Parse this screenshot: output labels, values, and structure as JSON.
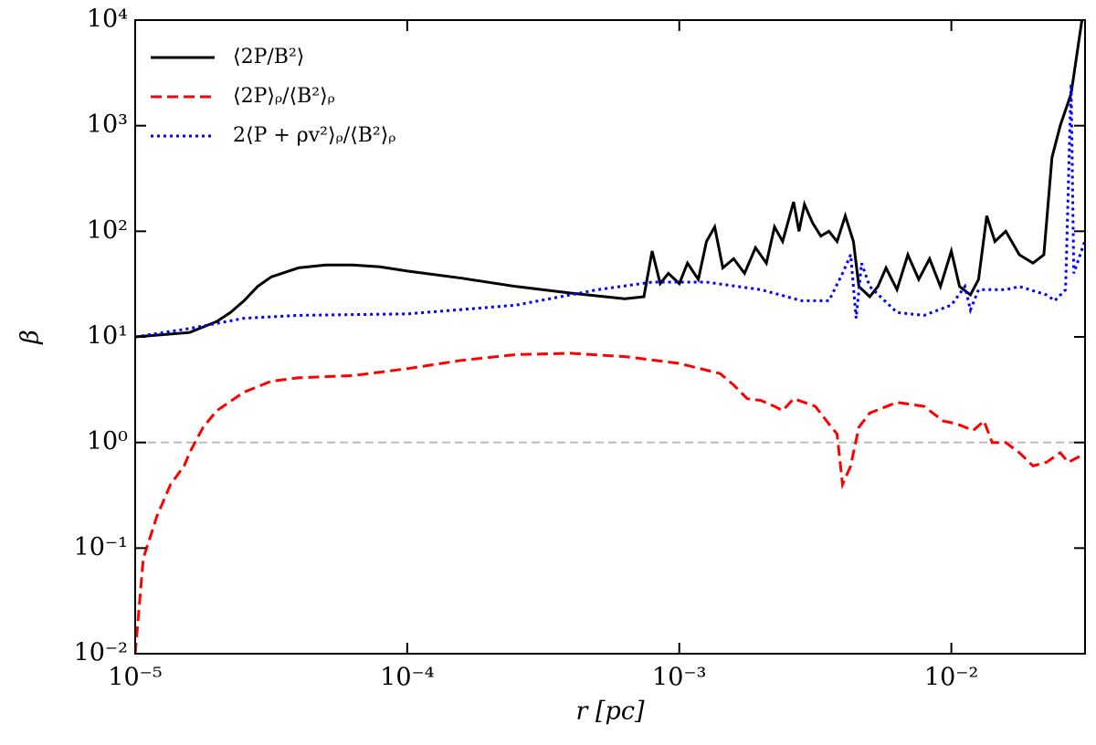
{
  "chart_data": {
    "type": "line",
    "xlabel": "r [pc]",
    "ylabel": "β",
    "xscale": "log",
    "yscale": "log",
    "xlim": [
      1e-05,
      0.031
    ],
    "ylim": [
      0.01,
      10000
    ],
    "xticks": [
      {
        "value": 1e-05,
        "label": "10⁻⁵"
      },
      {
        "value": 0.0001,
        "label": "10⁻⁴"
      },
      {
        "value": 0.001,
        "label": "10⁻³"
      },
      {
        "value": 0.01,
        "label": "10⁻²"
      }
    ],
    "yticks": [
      {
        "value": 0.01,
        "label": "10⁻²"
      },
      {
        "value": 0.1,
        "label": "10⁻¹"
      },
      {
        "value": 1,
        "label": "10⁰"
      },
      {
        "value": 10,
        "label": "10¹"
      },
      {
        "value": 100,
        "label": "10²"
      },
      {
        "value": 1000,
        "label": "10³"
      },
      {
        "value": 10000,
        "label": "10⁴"
      }
    ],
    "reference_line": {
      "value": 1,
      "color": "#bbbbbb"
    },
    "legend": "upper left",
    "series": [
      {
        "name": "⟨2P/B²⟩",
        "color": "#000000",
        "style": "solid",
        "logx": [
          -5.0,
          -4.8,
          -4.7,
          -4.65,
          -4.6,
          -4.55,
          -4.5,
          -4.4,
          -4.3,
          -4.2,
          -4.1,
          -4.0,
          -3.8,
          -3.6,
          -3.4,
          -3.2,
          -3.13,
          -3.1,
          -3.07,
          -3.04,
          -3.0,
          -2.97,
          -2.93,
          -2.9,
          -2.87,
          -2.84,
          -2.8,
          -2.76,
          -2.72,
          -2.68,
          -2.65,
          -2.62,
          -2.58,
          -2.56,
          -2.54,
          -2.51,
          -2.48,
          -2.45,
          -2.42,
          -2.39,
          -2.36,
          -2.34,
          -2.3,
          -2.27,
          -2.24,
          -2.2,
          -2.16,
          -2.12,
          -2.08,
          -2.04,
          -2.0,
          -1.97,
          -1.93,
          -1.9,
          -1.87,
          -1.84,
          -1.8,
          -1.75,
          -1.7,
          -1.66,
          -1.63,
          -1.6,
          -1.56,
          -1.52
        ],
        "values": [
          10,
          11,
          14,
          17,
          22,
          30,
          37,
          45,
          48,
          48,
          46,
          42,
          36,
          30,
          26,
          23,
          24,
          65,
          32,
          40,
          32,
          50,
          35,
          80,
          110,
          45,
          55,
          40,
          70,
          50,
          110,
          80,
          190,
          100,
          180,
          120,
          90,
          100,
          80,
          140,
          80,
          30,
          24,
          30,
          45,
          28,
          60,
          35,
          55,
          30,
          65,
          30,
          25,
          35,
          140,
          80,
          100,
          60,
          50,
          60,
          500,
          1000,
          2000,
          10000
        ]
      },
      {
        "name": "⟨2P⟩ᵨ/⟨B²⟩ᵨ",
        "color": "#ff0000",
        "style": "dashed",
        "logx": [
          -5.0,
          -4.97,
          -4.92,
          -4.87,
          -4.82,
          -4.8,
          -4.75,
          -4.7,
          -4.6,
          -4.5,
          -4.4,
          -4.2,
          -4.0,
          -3.8,
          -3.6,
          -3.4,
          -3.2,
          -3.0,
          -2.85,
          -2.8,
          -2.75,
          -2.7,
          -2.65,
          -2.62,
          -2.58,
          -2.5,
          -2.45,
          -2.42,
          -2.4,
          -2.37,
          -2.34,
          -2.3,
          -2.2,
          -2.1,
          -2.03,
          -1.98,
          -1.92,
          -1.88,
          -1.85,
          -1.8,
          -1.75,
          -1.7,
          -1.65,
          -1.6,
          -1.57,
          -1.51
        ],
        "values": [
          0.01,
          0.08,
          0.2,
          0.4,
          0.6,
          0.8,
          1.4,
          2.0,
          3.0,
          3.8,
          4.1,
          4.3,
          5.0,
          6.0,
          6.8,
          7.0,
          6.5,
          5.6,
          4.5,
          3.5,
          2.6,
          2.5,
          2.2,
          2.0,
          2.6,
          2.2,
          1.5,
          1.2,
          0.4,
          0.6,
          1.4,
          1.9,
          2.4,
          2.2,
          1.6,
          1.5,
          1.3,
          1.6,
          1.0,
          1.0,
          0.8,
          0.6,
          0.65,
          0.8,
          0.65,
          0.78
        ]
      },
      {
        "name": "2⟨P + ρv²⟩ᵨ/⟨B²⟩ᵨ",
        "color": "#0000ff",
        "style": "dotted",
        "logx": [
          -5.0,
          -4.8,
          -4.6,
          -4.4,
          -4.0,
          -3.6,
          -3.3,
          -3.1,
          -2.9,
          -2.7,
          -2.55,
          -2.45,
          -2.4,
          -2.37,
          -2.35,
          -2.33,
          -2.3,
          -2.2,
          -2.1,
          -2.0,
          -1.95,
          -1.93,
          -1.9,
          -1.8,
          -1.75,
          -1.65,
          -1.62,
          -1.58,
          -1.56,
          -1.55,
          -1.51
        ],
        "values": [
          10,
          12,
          15,
          16,
          16.5,
          20,
          28,
          33,
          33,
          28,
          22,
          22,
          40,
          60,
          15,
          50,
          30,
          17,
          16,
          20,
          30,
          18,
          28,
          28,
          30,
          25,
          22,
          28,
          2500,
          40,
          80
        ]
      }
    ]
  }
}
